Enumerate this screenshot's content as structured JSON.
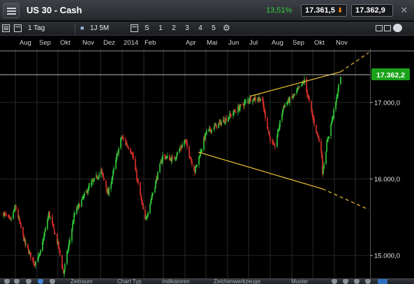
{
  "window": {
    "instrument": "US 30 - Cash",
    "change_pct": "13,51%",
    "bid": "17.361,5",
    "ask": "17.362,9",
    "colors": {
      "up": "#33d13d",
      "down_arrow": "#ff8b1a",
      "price_tag": "#1aa31a"
    }
  },
  "toolbar": {
    "interval": "1 Tag",
    "range": "1J 5M",
    "s_label": "S",
    "numbers": [
      "1",
      "2",
      "3",
      "4",
      "5"
    ]
  },
  "bottombar": {
    "tabs": [
      "Zeitraum",
      "Chart Typ",
      "Indikatoren",
      "Zeichenwerkzeuge",
      "Muster"
    ]
  },
  "chart_data": {
    "type": "candlestick",
    "x_labels": [
      "Aug",
      "Sep",
      "Okt",
      "Nov",
      "Dez",
      "2014",
      "Feb",
      "Apr",
      "Mai",
      "Jun",
      "Jul",
      "Aug",
      "Sep",
      "Okt",
      "Nov"
    ],
    "y_ticks": [
      "17.000,0",
      "16.000,0",
      "15.000,0"
    ],
    "y_tick_values": [
      17000,
      16000,
      15000
    ],
    "ylim": [
      14700,
      17700
    ],
    "current_price": "17.362,2",
    "current_value": 17362.2,
    "close_path": [
      {
        "t": "2013-07-15",
        "v": 15550
      },
      {
        "t": "2013-07-25",
        "v": 15450
      },
      {
        "t": "2013-08-01",
        "v": 15640
      },
      {
        "t": "2013-08-15",
        "v": 15150
      },
      {
        "t": "2013-08-28",
        "v": 14900
      },
      {
        "t": "2013-09-05",
        "v": 15000
      },
      {
        "t": "2013-09-18",
        "v": 15550
      },
      {
        "t": "2013-10-01",
        "v": 15150
      },
      {
        "t": "2013-10-09",
        "v": 14770
      },
      {
        "t": "2013-10-25",
        "v": 15550
      },
      {
        "t": "2013-11-15",
        "v": 15900
      },
      {
        "t": "2013-12-02",
        "v": 16100
      },
      {
        "t": "2013-12-12",
        "v": 15800
      },
      {
        "t": "2013-12-31",
        "v": 16550
      },
      {
        "t": "2014-01-15",
        "v": 16350
      },
      {
        "t": "2014-02-03",
        "v": 15450
      },
      {
        "t": "2014-02-28",
        "v": 16300
      },
      {
        "t": "2014-03-15",
        "v": 16250
      },
      {
        "t": "2014-04-01",
        "v": 16500
      },
      {
        "t": "2014-04-15",
        "v": 16100
      },
      {
        "t": "2014-05-01",
        "v": 16600
      },
      {
        "t": "2014-06-01",
        "v": 16800
      },
      {
        "t": "2014-06-20",
        "v": 16950
      },
      {
        "t": "2014-07-03",
        "v": 17050
      },
      {
        "t": "2014-07-20",
        "v": 17050
      },
      {
        "t": "2014-07-31",
        "v": 16550
      },
      {
        "t": "2014-08-07",
        "v": 16400
      },
      {
        "t": "2014-08-20",
        "v": 16950
      },
      {
        "t": "2014-09-05",
        "v": 17100
      },
      {
        "t": "2014-09-19",
        "v": 17280
      },
      {
        "t": "2014-10-01",
        "v": 16800
      },
      {
        "t": "2014-10-13",
        "v": 16400
      },
      {
        "t": "2014-10-15",
        "v": 16100
      },
      {
        "t": "2014-10-22",
        "v": 16500
      },
      {
        "t": "2014-11-03",
        "v": 17000
      },
      {
        "t": "2014-11-10",
        "v": 17362
      }
    ],
    "trendlines": [
      {
        "name": "upper",
        "from": {
          "t": "2014-07-03",
          "v": 17080
        },
        "to": {
          "t": "2014-11-10",
          "v": 17400
        },
        "ext_to": {
          "t": "2014-12-20",
          "v": 17650
        }
      },
      {
        "name": "lower",
        "from": {
          "t": "2014-04-20",
          "v": 16350
        },
        "to": {
          "t": "2014-10-15",
          "v": 15870
        },
        "ext_to": {
          "t": "2014-12-20",
          "v": 15600
        }
      }
    ]
  }
}
